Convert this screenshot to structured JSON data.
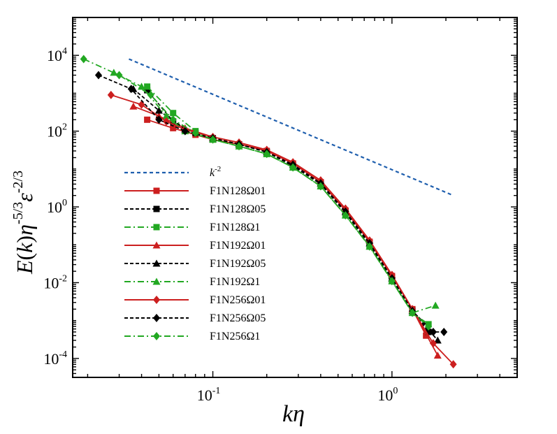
{
  "chart_data": {
    "type": "line",
    "title": "",
    "xlabel": "kη",
    "ylabel": "E(k)η^-5/3 ε^-2/3",
    "x_scale": "log",
    "y_scale": "log",
    "xlim": [
      0.0165,
      5.0
    ],
    "ylim": [
      3.16e-05,
      100000
    ],
    "x_ticks": [
      {
        "base": "10",
        "exp": "-1"
      },
      {
        "base": "10",
        "exp": "0"
      }
    ],
    "y_ticks": [
      {
        "base": "10",
        "exp": "4"
      },
      {
        "base": "10",
        "exp": "2"
      },
      {
        "base": "10",
        "exp": "0"
      },
      {
        "base": "10",
        "exp": "-2"
      },
      {
        "base": "10",
        "exp": "-4"
      }
    ],
    "grid": false,
    "legend_position": "lower-left",
    "reference_line": {
      "name": "k^-2",
      "label_base": "k",
      "label_exp": "-2",
      "color": "#1f5fae",
      "x": [
        0.034,
        2.2
      ],
      "y": [
        8000,
        2.0
      ]
    },
    "series": [
      {
        "name": "F1N128Ω01",
        "color": "#cc1f1f",
        "marker": "square",
        "dash": "solid",
        "x": [
          0.043,
          0.06,
          0.08,
          0.1,
          0.14,
          0.2,
          0.28,
          0.4,
          0.55,
          0.75,
          1.0,
          1.3,
          1.55
        ],
        "y": [
          200,
          120,
          80,
          60,
          45,
          30,
          14,
          4.5,
          0.8,
          0.12,
          0.015,
          0.002,
          0.0004
        ]
      },
      {
        "name": "F1N128Ω05",
        "color": "#000000",
        "marker": "square",
        "dash": "dotted",
        "x": [
          0.043,
          0.06,
          0.08,
          0.1,
          0.14,
          0.2,
          0.28,
          0.4,
          0.55,
          0.75,
          1.0,
          1.3,
          1.6
        ],
        "y": [
          1200,
          180,
          90,
          65,
          45,
          28,
          12,
          4.0,
          0.7,
          0.1,
          0.012,
          0.0018,
          0.0005
        ]
      },
      {
        "name": "F1N128Ω1",
        "color": "#22a822",
        "marker": "square",
        "dash": "dashdot",
        "x": [
          0.043,
          0.06,
          0.08,
          0.1,
          0.14,
          0.2,
          0.28,
          0.4,
          0.55,
          0.75,
          1.0,
          1.3,
          1.6
        ],
        "y": [
          1500,
          300,
          100,
          60,
          40,
          25,
          11,
          3.5,
          0.6,
          0.09,
          0.011,
          0.0016,
          0.0008
        ]
      },
      {
        "name": "F1N192Ω01",
        "color": "#cc1f1f",
        "marker": "triangle",
        "dash": "solid",
        "x": [
          0.036,
          0.05,
          0.07,
          0.1,
          0.14,
          0.2,
          0.28,
          0.4,
          0.55,
          0.75,
          1.0,
          1.3,
          1.8
        ],
        "y": [
          450,
          250,
          120,
          70,
          50,
          32,
          15,
          5.0,
          0.9,
          0.13,
          0.016,
          0.002,
          0.00012
        ]
      },
      {
        "name": "F1N192Ω05",
        "color": "#000000",
        "marker": "triangle",
        "dash": "dotted",
        "x": [
          0.036,
          0.05,
          0.07,
          0.1,
          0.14,
          0.2,
          0.28,
          0.4,
          0.55,
          0.75,
          1.0,
          1.3,
          1.8
        ],
        "y": [
          1300,
          350,
          110,
          65,
          45,
          28,
          13,
          4.2,
          0.75,
          0.11,
          0.013,
          0.0018,
          0.0003
        ]
      },
      {
        "name": "F1N192Ω1",
        "color": "#22a822",
        "marker": "triangle",
        "dash": "dashdot",
        "x": [
          0.028,
          0.04,
          0.055,
          0.07,
          0.1,
          0.14,
          0.2,
          0.28,
          0.4,
          0.55,
          0.75,
          1.0,
          1.3,
          1.75
        ],
        "y": [
          3500,
          1500,
          250,
          100,
          60,
          40,
          25,
          11,
          3.5,
          0.6,
          0.09,
          0.011,
          0.0016,
          0.0025
        ]
      },
      {
        "name": "F1N256Ω01",
        "color": "#cc1f1f",
        "marker": "diamond",
        "dash": "solid",
        "x": [
          0.027,
          0.04,
          0.055,
          0.07,
          0.1,
          0.14,
          0.2,
          0.28,
          0.4,
          0.55,
          0.75,
          1.0,
          1.3,
          1.7,
          2.2
        ],
        "y": [
          900,
          500,
          180,
          110,
          70,
          50,
          32,
          15,
          5.0,
          0.9,
          0.13,
          0.016,
          0.002,
          0.00025,
          7e-05
        ]
      },
      {
        "name": "F1N256Ω05",
        "color": "#000000",
        "marker": "diamond",
        "dash": "dotted",
        "x": [
          0.023,
          0.035,
          0.05,
          0.07,
          0.1,
          0.14,
          0.2,
          0.28,
          0.4,
          0.55,
          0.75,
          1.0,
          1.3,
          1.7,
          1.95
        ],
        "y": [
          3000,
          1300,
          200,
          100,
          65,
          45,
          28,
          13,
          4.2,
          0.75,
          0.11,
          0.013,
          0.0018,
          0.0005,
          0.0005
        ]
      },
      {
        "name": "F1N256Ω1",
        "color": "#22a822",
        "marker": "diamond",
        "dash": "dashdot",
        "x": [
          0.019,
          0.03,
          0.045,
          0.06,
          0.08,
          0.1,
          0.14,
          0.2,
          0.28,
          0.4,
          0.55,
          0.75,
          1.0,
          1.3,
          1.6
        ],
        "y": [
          8000,
          3000,
          900,
          200,
          90,
          60,
          40,
          25,
          11,
          3.5,
          0.6,
          0.09,
          0.011,
          0.0016,
          0.0007
        ]
      }
    ]
  }
}
